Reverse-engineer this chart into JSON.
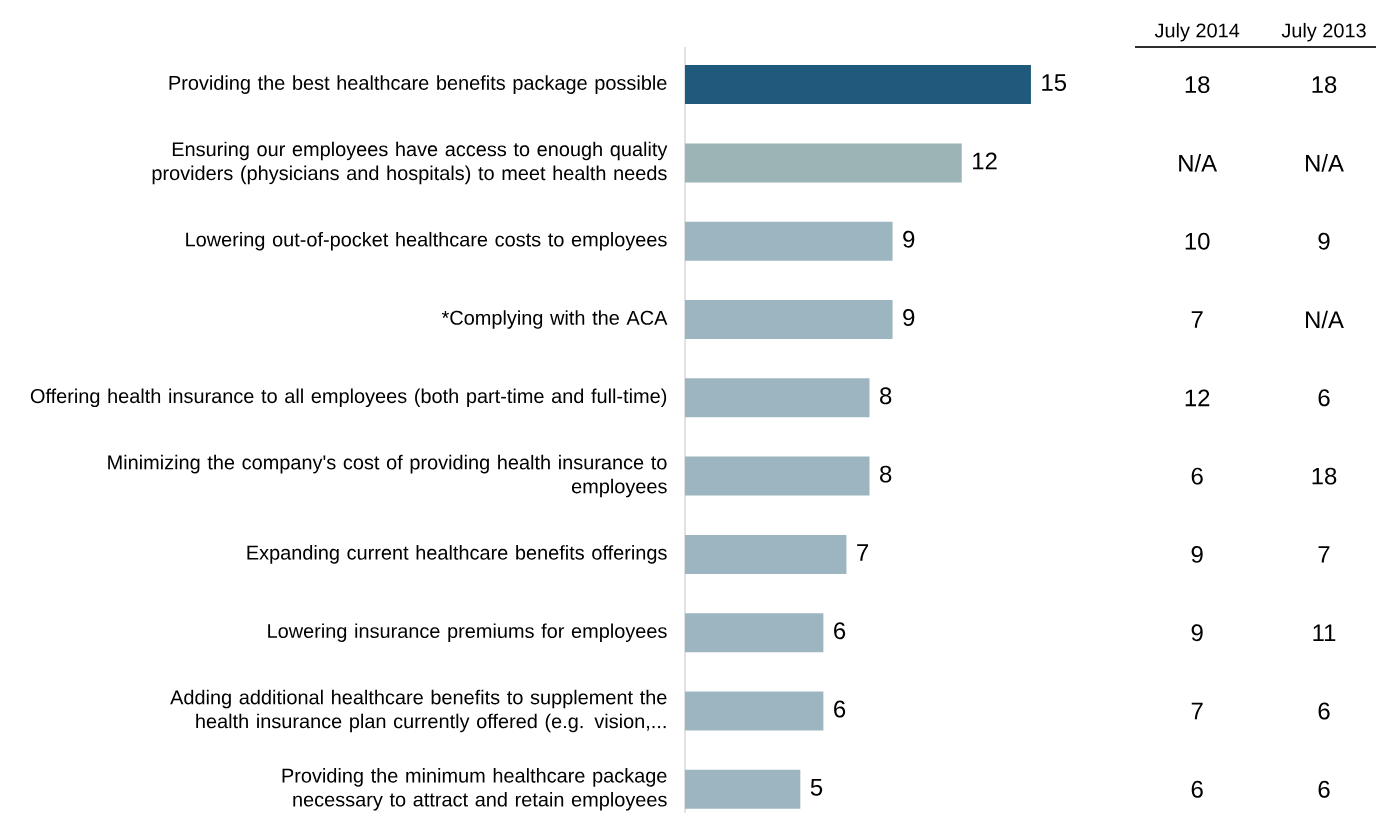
{
  "chart_data": [
    {
      "type": "bar",
      "orientation": "horizontal",
      "data_labels": true,
      "categories": [
        "Providing the best healthcare benefits package possible",
        "Ensuring our employees have access to enough quality providers (physicians and hospitals) to meet health needs",
        "Lowering out-of-pocket healthcare costs to employees",
        "*Complying with the ACA",
        "Offering health insurance to all employees (both part-time and full-time)",
        "Minimizing the company's cost of providing health insurance to employees",
        "Expanding current healthcare benefits offerings",
        "Lowering insurance premiums for employees",
        "Adding additional healthcare benefits to supplement the health insurance plan currently offered (e.g. vision,...",
        "Providing the minimum healthcare package necessary to attract and retain employees"
      ],
      "values": [
        15,
        12,
        9,
        9,
        8,
        8,
        7,
        6,
        6,
        5
      ],
      "colors": [
        "#1f5a7c",
        "#9db4b6",
        "#9cb5c1",
        "#9cb5c1",
        "#9cb5c1",
        "#9cb5c1",
        "#9cb5c1",
        "#9cb5c1",
        "#9cb5c1",
        "#9cb5c1"
      ]
    },
    {
      "type": "other",
      "categories": [
        "July 2014",
        "July 2013"
      ],
      "annotations": [
        "18",
        "18",
        "N/A",
        "N/A",
        "10",
        "9",
        "7",
        "N/A",
        "12",
        "6",
        "6",
        "18",
        "9",
        "7",
        "9",
        "11",
        "7",
        "6",
        "6",
        "6"
      ]
    }
  ]
}
